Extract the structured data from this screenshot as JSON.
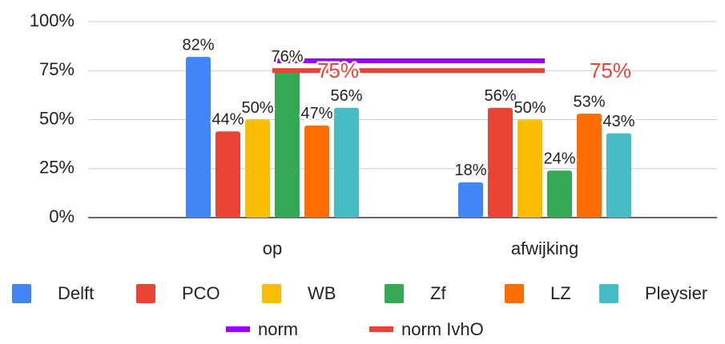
{
  "chart_data": {
    "type": "bar",
    "categories": [
      "op",
      "afwijking"
    ],
    "series": [
      {
        "name": "Delft",
        "color": "#4285f4",
        "values": [
          82,
          18
        ],
        "value_labels": [
          "82%",
          "18%"
        ]
      },
      {
        "name": "PCO",
        "color": "#ea4335",
        "values": [
          44,
          56
        ],
        "value_labels": [
          "44%",
          "56%"
        ]
      },
      {
        "name": "WB",
        "color": "#fbbc04",
        "values": [
          50,
          50
        ],
        "value_labels": [
          "50%",
          "50%"
        ]
      },
      {
        "name": "Zf",
        "color": "#34a853",
        "values": [
          76,
          24
        ],
        "value_labels": [
          "76%",
          "24%"
        ]
      },
      {
        "name": "LZ",
        "color": "#ff6d01",
        "values": [
          47,
          53
        ],
        "value_labels": [
          "47%",
          "53%"
        ]
      },
      {
        "name": "Pleysier",
        "color": "#46bdc6",
        "values": [
          56,
          43
        ],
        "value_labels": [
          "56%",
          "43%"
        ]
      },
      {
        "name": "norm",
        "type": "line",
        "color": "#9900ff",
        "values": [
          80,
          80
        ]
      },
      {
        "name": "norm IvhO",
        "type": "line",
        "color": "#ea4335",
        "values": [
          75,
          75
        ],
        "value_labels": [
          "75%",
          "75%"
        ]
      }
    ],
    "ylim": [
      0,
      100
    ],
    "yticks": [
      {
        "value": 0,
        "label": "0%"
      },
      {
        "value": 25,
        "label": "25%"
      },
      {
        "value": 50,
        "label": "50%"
      },
      {
        "value": 75,
        "label": "75%"
      },
      {
        "value": 100,
        "label": "100%"
      }
    ],
    "grid": true,
    "legend": "bottom"
  }
}
